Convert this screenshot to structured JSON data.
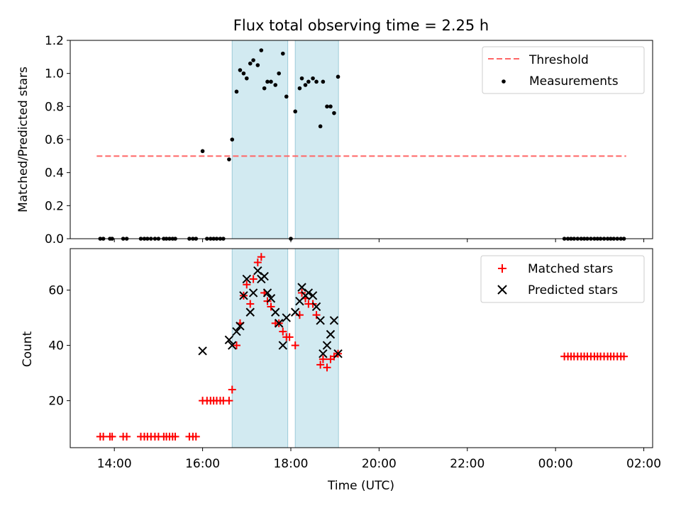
{
  "chart_data": [
    {
      "type": "scatter",
      "title": "Flux total observing time = 2.25 h",
      "xlabel": "",
      "ylabel": "Matched/Predicted stars",
      "xlim": [
        13.0,
        26.2
      ],
      "ylim": [
        0,
        1.2
      ],
      "yticks": [
        0,
        0.2,
        0.4,
        0.6,
        0.8,
        1.0,
        1.2
      ],
      "ytick_labels": [
        "0.0",
        "0.2",
        "0.4",
        "0.6",
        "0.8",
        "1.0",
        "1.2"
      ],
      "xticks": [
        14,
        16,
        18,
        20,
        22,
        24,
        26
      ],
      "shaded_spans": [
        [
          16.67,
          17.93
        ],
        [
          18.1,
          19.08
        ]
      ],
      "threshold": {
        "name": "Threshold",
        "value": 0.5,
        "x_range": [
          13.6,
          25.6
        ],
        "color": "#ff6666"
      },
      "legend": {
        "placement": "top-right",
        "entries": [
          "Threshold",
          "Measurements"
        ]
      },
      "series": [
        {
          "name": "Measurements",
          "color": "#000000",
          "points": [
            [
              13.68,
              0
            ],
            [
              13.75,
              0
            ],
            [
              13.9,
              0
            ],
            [
              13.95,
              0
            ],
            [
              14.2,
              0
            ],
            [
              14.28,
              0
            ],
            [
              14.6,
              0
            ],
            [
              14.68,
              0
            ],
            [
              14.75,
              0
            ],
            [
              14.83,
              0
            ],
            [
              14.92,
              0
            ],
            [
              15.0,
              0
            ],
            [
              15.12,
              0
            ],
            [
              15.18,
              0
            ],
            [
              15.25,
              0
            ],
            [
              15.32,
              0
            ],
            [
              15.38,
              0
            ],
            [
              15.7,
              0
            ],
            [
              15.78,
              0
            ],
            [
              15.85,
              0
            ],
            [
              16.0,
              0.53
            ],
            [
              16.1,
              0
            ],
            [
              16.18,
              0
            ],
            [
              16.25,
              0
            ],
            [
              16.32,
              0
            ],
            [
              16.4,
              0
            ],
            [
              16.47,
              0
            ],
            [
              16.6,
              0.48
            ],
            [
              16.67,
              0.6
            ],
            [
              16.77,
              0.89
            ],
            [
              16.85,
              1.02
            ],
            [
              16.93,
              1.0
            ],
            [
              17.0,
              0.97
            ],
            [
              17.08,
              1.06
            ],
            [
              17.15,
              1.08
            ],
            [
              17.25,
              1.05
            ],
            [
              17.33,
              1.14
            ],
            [
              17.4,
              0.91
            ],
            [
              17.47,
              0.95
            ],
            [
              17.55,
              0.95
            ],
            [
              17.65,
              0.93
            ],
            [
              17.73,
              1.0
            ],
            [
              17.82,
              1.12
            ],
            [
              17.9,
              0.86
            ],
            [
              18.0,
              0
            ],
            [
              18.1,
              0.77
            ],
            [
              18.2,
              0.91
            ],
            [
              18.25,
              0.97
            ],
            [
              18.33,
              0.93
            ],
            [
              18.4,
              0.95
            ],
            [
              18.5,
              0.97
            ],
            [
              18.58,
              0.95
            ],
            [
              18.67,
              0.68
            ],
            [
              18.73,
              0.95
            ],
            [
              18.82,
              0.8
            ],
            [
              18.9,
              0.8
            ],
            [
              18.98,
              0.76
            ],
            [
              19.07,
              0.98
            ],
            [
              24.2,
              0
            ],
            [
              24.28,
              0
            ],
            [
              24.35,
              0
            ],
            [
              24.42,
              0
            ],
            [
              24.5,
              0
            ],
            [
              24.58,
              0
            ],
            [
              24.65,
              0
            ],
            [
              24.72,
              0
            ],
            [
              24.8,
              0
            ],
            [
              24.88,
              0
            ],
            [
              24.95,
              0
            ],
            [
              25.02,
              0
            ],
            [
              25.1,
              0
            ],
            [
              25.18,
              0
            ],
            [
              25.25,
              0
            ],
            [
              25.32,
              0
            ],
            [
              25.4,
              0
            ],
            [
              25.48,
              0
            ],
            [
              25.55,
              0
            ]
          ]
        }
      ]
    },
    {
      "type": "scatter",
      "title": "",
      "xlabel": "Time (UTC)",
      "ylabel": "Count",
      "xlim": [
        13.0,
        26.2
      ],
      "ylim": [
        3,
        75
      ],
      "yticks": [
        20,
        40,
        60
      ],
      "ytick_labels": [
        "20",
        "40",
        "60"
      ],
      "xticks": [
        14,
        16,
        18,
        20,
        22,
        24,
        26
      ],
      "xtick_labels": [
        "14:00",
        "16:00",
        "18:00",
        "20:00",
        "22:00",
        "00:00",
        "02:00"
      ],
      "shaded_spans": [
        [
          16.67,
          17.93
        ],
        [
          18.1,
          19.08
        ]
      ],
      "legend": {
        "placement": "top-right",
        "entries": [
          "Matched stars",
          "Predicted stars"
        ]
      },
      "series": [
        {
          "name": "Matched stars",
          "marker": "+",
          "color": "#ff0000",
          "points": [
            [
              13.68,
              7
            ],
            [
              13.75,
              7
            ],
            [
              13.9,
              7
            ],
            [
              13.95,
              7
            ],
            [
              14.2,
              7
            ],
            [
              14.28,
              7
            ],
            [
              14.6,
              7
            ],
            [
              14.68,
              7
            ],
            [
              14.75,
              7
            ],
            [
              14.83,
              7
            ],
            [
              14.92,
              7
            ],
            [
              15.0,
              7
            ],
            [
              15.12,
              7
            ],
            [
              15.18,
              7
            ],
            [
              15.25,
              7
            ],
            [
              15.32,
              7
            ],
            [
              15.38,
              7
            ],
            [
              15.7,
              7
            ],
            [
              15.78,
              7
            ],
            [
              15.85,
              7
            ],
            [
              16.0,
              20
            ],
            [
              16.1,
              20
            ],
            [
              16.18,
              20
            ],
            [
              16.25,
              20
            ],
            [
              16.32,
              20
            ],
            [
              16.4,
              20
            ],
            [
              16.47,
              20
            ],
            [
              16.6,
              20
            ],
            [
              16.67,
              24
            ],
            [
              16.77,
              40
            ],
            [
              16.85,
              48
            ],
            [
              16.93,
              58
            ],
            [
              17.0,
              62
            ],
            [
              17.08,
              55
            ],
            [
              17.15,
              64
            ],
            [
              17.25,
              70
            ],
            [
              17.33,
              72
            ],
            [
              17.4,
              59
            ],
            [
              17.47,
              56
            ],
            [
              17.55,
              54
            ],
            [
              17.65,
              48
            ],
            [
              17.73,
              48
            ],
            [
              17.82,
              45
            ],
            [
              17.9,
              43
            ],
            [
              17.97,
              43
            ],
            [
              18.1,
              40
            ],
            [
              18.2,
              51
            ],
            [
              18.25,
              59
            ],
            [
              18.33,
              57
            ],
            [
              18.4,
              55
            ],
            [
              18.5,
              55
            ],
            [
              18.58,
              51
            ],
            [
              18.67,
              33
            ],
            [
              18.73,
              35
            ],
            [
              18.82,
              32
            ],
            [
              18.9,
              35
            ],
            [
              18.98,
              36
            ],
            [
              19.07,
              37
            ],
            [
              24.2,
              36
            ],
            [
              24.28,
              36
            ],
            [
              24.35,
              36
            ],
            [
              24.42,
              36
            ],
            [
              24.5,
              36
            ],
            [
              24.58,
              36
            ],
            [
              24.65,
              36
            ],
            [
              24.72,
              36
            ],
            [
              24.8,
              36
            ],
            [
              24.88,
              36
            ],
            [
              24.95,
              36
            ],
            [
              25.02,
              36
            ],
            [
              25.1,
              36
            ],
            [
              25.18,
              36
            ],
            [
              25.25,
              36
            ],
            [
              25.32,
              36
            ],
            [
              25.4,
              36
            ],
            [
              25.48,
              36
            ],
            [
              25.55,
              36
            ]
          ]
        },
        {
          "name": "Predicted stars",
          "marker": "x",
          "color": "#000000",
          "points": [
            [
              16.0,
              38
            ],
            [
              16.6,
              42
            ],
            [
              16.67,
              40
            ],
            [
              16.77,
              45
            ],
            [
              16.85,
              47
            ],
            [
              16.93,
              58
            ],
            [
              17.0,
              64
            ],
            [
              17.08,
              52
            ],
            [
              17.15,
              59
            ],
            [
              17.25,
              67
            ],
            [
              17.33,
              64
            ],
            [
              17.4,
              65
            ],
            [
              17.47,
              59
            ],
            [
              17.55,
              57
            ],
            [
              17.65,
              52
            ],
            [
              17.73,
              48
            ],
            [
              17.82,
              40
            ],
            [
              17.9,
              50
            ],
            [
              18.1,
              52
            ],
            [
              18.2,
              56
            ],
            [
              18.25,
              61
            ],
            [
              18.33,
              58
            ],
            [
              18.4,
              59
            ],
            [
              18.5,
              58
            ],
            [
              18.58,
              54
            ],
            [
              18.67,
              49
            ],
            [
              18.73,
              37
            ],
            [
              18.82,
              40
            ],
            [
              18.9,
              44
            ],
            [
              18.98,
              49
            ],
            [
              19.07,
              37
            ]
          ]
        }
      ]
    }
  ]
}
